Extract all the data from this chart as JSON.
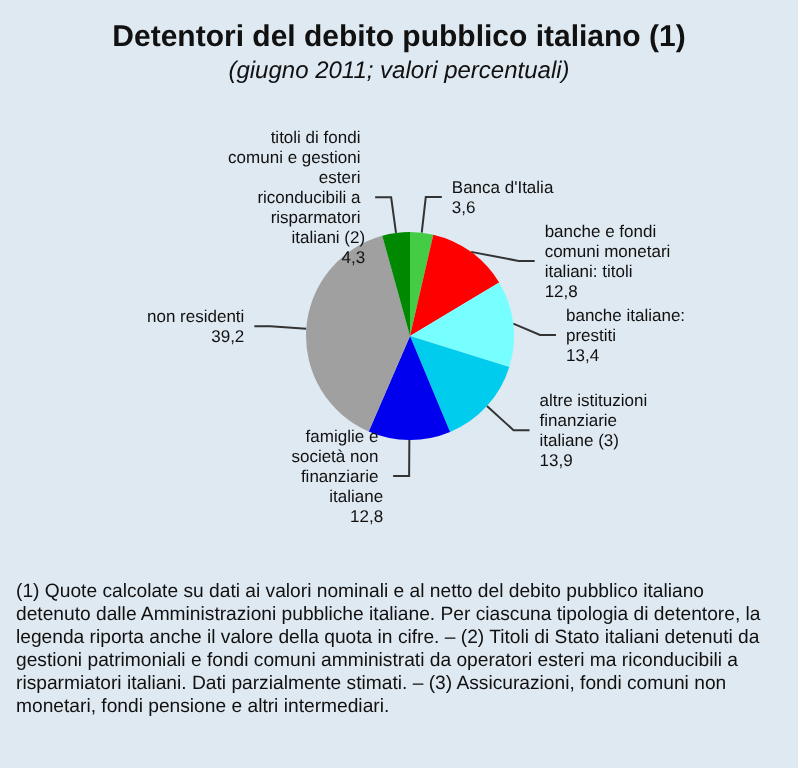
{
  "chart_data": {
    "type": "pie",
    "title": "Detentori del debito pubblico italiano (1)",
    "subtitle": "(giugno 2011; valori percentuali)",
    "categories": [
      "Banca d'Italia",
      "banche e fondi comuni monetari italiani: titoli",
      "banche italiane: prestiti",
      "altre istituzioni finanziarie italiane (3)",
      "famiglie e società non finanziarie italiane",
      "non residenti",
      "titoli di fondi comuni e gestioni esteri riconducibili a risparmatori italiani (2)"
    ],
    "values": [
      3.6,
      12.8,
      13.4,
      13.9,
      12.8,
      39.2,
      4.3
    ],
    "colors": [
      "#44cc44",
      "#ff0000",
      "#77ffff",
      "#00ccee",
      "#0000ee",
      "#a0a0a0",
      "#008800"
    ],
    "value_labels": [
      "3,6",
      "12,8",
      "13,4",
      "13,9",
      "12,8",
      "39,2",
      "4,3"
    ],
    "annotations": [
      "(1) Quote calcolate su dati ai valori nominali e al netto del debito pubblico italiano detenuto dalle Amministrazioni pubbliche italiane. Per ciascuna tipologia di detentore, la legenda riporta anche il valore della quota in cifre. – (2) Titoli di Stato italiani detenuti da gestioni patrimoniali e fondi comuni amministrati da operatori esteri ma riconducibili a risparmiatori italiani. Dati parzialmente stimati. – (3) Assicurazioni, fondi comuni non monetari, fondi pensione e altri intermediari."
    ]
  }
}
